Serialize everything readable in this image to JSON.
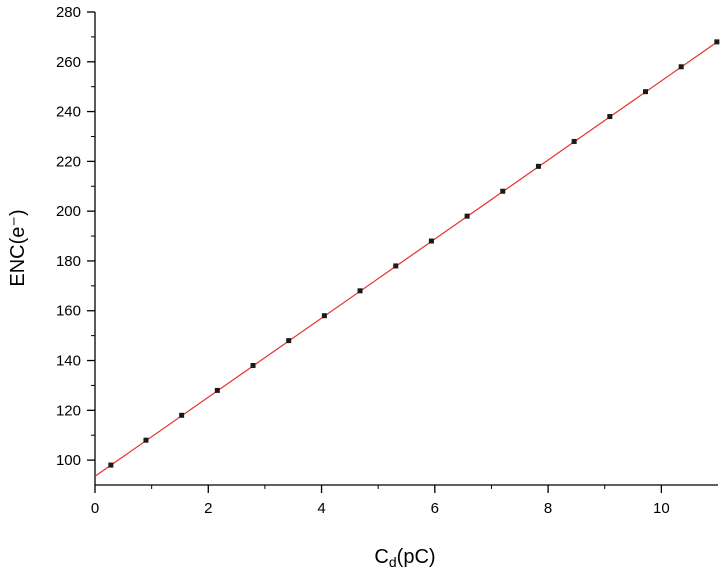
{
  "chart_data": {
    "type": "scatter",
    "title": "",
    "xlabel_main": "C",
    "xlabel_sub": "d",
    "xlabel_unit": "(pC)",
    "ylabel": "ENC(e⁻)",
    "xlim": [
      0,
      11
    ],
    "ylim": [
      90,
      280
    ],
    "xticks": [
      0,
      2,
      4,
      6,
      8,
      10
    ],
    "yticks": [
      100,
      120,
      140,
      160,
      180,
      200,
      220,
      240,
      260,
      280
    ],
    "grid": false,
    "legend": "none",
    "series": [
      {
        "marker_color": "#1a1a1a",
        "x": [
          0.28,
          0.9,
          1.53,
          2.16,
          2.79,
          3.42,
          4.05,
          4.68,
          5.31,
          5.94,
          6.57,
          7.2,
          7.83,
          8.46,
          9.09,
          9.72,
          10.35,
          10.98
        ],
        "y": [
          98,
          108,
          118,
          128,
          138,
          148,
          158,
          168,
          178,
          188,
          198,
          208,
          218,
          228,
          238,
          248,
          258,
          268
        ]
      }
    ],
    "fit_line": {
      "color": "#e8302c",
      "x": [
        0,
        11
      ],
      "y": [
        93.5,
        268.2
      ]
    }
  }
}
